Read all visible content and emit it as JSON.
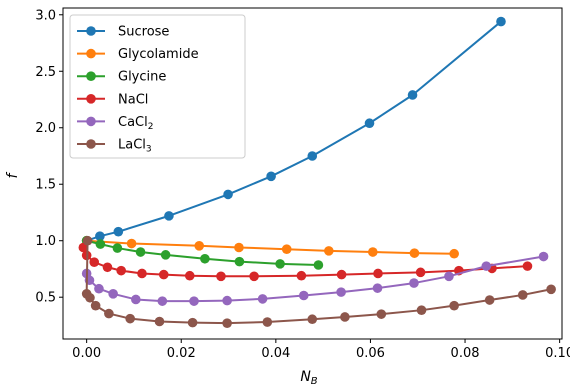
{
  "chart_data": {
    "type": "line",
    "xlabel": "N",
    "xlabel_sub": "B",
    "ylabel": "f",
    "xlim": [
      -0.005,
      0.1005
    ],
    "ylim": [
      0.13,
      3.06
    ],
    "xticks": [
      0.0,
      0.02,
      0.04,
      0.06,
      0.08,
      0.1
    ],
    "xtick_labels": [
      "0.00",
      "0.02",
      "0.04",
      "0.06",
      "0.08",
      "0.10"
    ],
    "yticks": [
      0.5,
      1.0,
      1.5,
      2.0,
      2.5,
      3.0
    ],
    "ytick_labels": [
      "0.5",
      "1.0",
      "1.5",
      "2.0",
      "2.5",
      "3.0"
    ],
    "grid": false,
    "legend_position": "top-left",
    "series": [
      {
        "name": "Sucrose",
        "sub": "",
        "color": "#1f77b4",
        "x": [
          0.0,
          0.0028,
          0.0067,
          0.0174,
          0.0299,
          0.039,
          0.0477,
          0.0598,
          0.0689,
          0.0876
        ],
        "y": [
          1.0,
          1.04,
          1.08,
          1.22,
          1.41,
          1.57,
          1.75,
          2.04,
          2.29,
          2.94
        ]
      },
      {
        "name": "Glycolamide",
        "sub": "",
        "color": "#ff7f0e",
        "x": [
          0.0,
          0.0095,
          0.0238,
          0.0322,
          0.0423,
          0.0512,
          0.0605,
          0.0693,
          0.0777
        ],
        "y": [
          1.0,
          0.975,
          0.955,
          0.94,
          0.925,
          0.91,
          0.9,
          0.89,
          0.885
        ]
      },
      {
        "name": "Glycine",
        "sub": "",
        "color": "#2ca02c",
        "x": [
          0.0,
          0.0029,
          0.0065,
          0.0114,
          0.0167,
          0.025,
          0.0323,
          0.0409,
          0.049
        ],
        "y": [
          1.0,
          0.97,
          0.935,
          0.9,
          0.875,
          0.84,
          0.815,
          0.795,
          0.785
        ]
      },
      {
        "name": "NaCl",
        "sub": "",
        "color": "#d62728",
        "x": [
          -0.0007,
          0.0,
          0.0016,
          0.0044,
          0.0073,
          0.0117,
          0.0163,
          0.0218,
          0.0284,
          0.0354,
          0.0454,
          0.0539,
          0.0616,
          0.0706,
          0.0787,
          0.0857,
          0.0932
        ],
        "y": [
          0.94,
          0.87,
          0.81,
          0.765,
          0.735,
          0.71,
          0.7,
          0.69,
          0.685,
          0.685,
          0.69,
          0.7,
          0.71,
          0.72,
          0.735,
          0.755,
          0.775
        ]
      },
      {
        "name": "CaCl",
        "sub": "2",
        "color": "#9467bd",
        "x": [
          0.0,
          0.0006,
          0.0026,
          0.0056,
          0.0104,
          0.016,
          0.0227,
          0.0297,
          0.0372,
          0.0459,
          0.0538,
          0.0615,
          0.0692,
          0.0766,
          0.0845,
          0.0966
        ],
        "y": [
          0.71,
          0.65,
          0.575,
          0.53,
          0.48,
          0.465,
          0.465,
          0.47,
          0.485,
          0.515,
          0.545,
          0.58,
          0.625,
          0.685,
          0.775,
          0.86
        ]
      },
      {
        "name": "LaCl",
        "sub": "3",
        "color": "#8c564b",
        "x": [
          0.0002,
          0.0,
          0.0007,
          0.0019,
          0.0047,
          0.0092,
          0.0154,
          0.0224,
          0.0297,
          0.0382,
          0.0477,
          0.0546,
          0.0623,
          0.0708,
          0.0777,
          0.0852,
          0.0922,
          0.0982
        ],
        "y": [
          1.0,
          0.53,
          0.495,
          0.425,
          0.355,
          0.31,
          0.285,
          0.275,
          0.27,
          0.28,
          0.305,
          0.325,
          0.35,
          0.385,
          0.425,
          0.475,
          0.52,
          0.57
        ]
      }
    ]
  }
}
